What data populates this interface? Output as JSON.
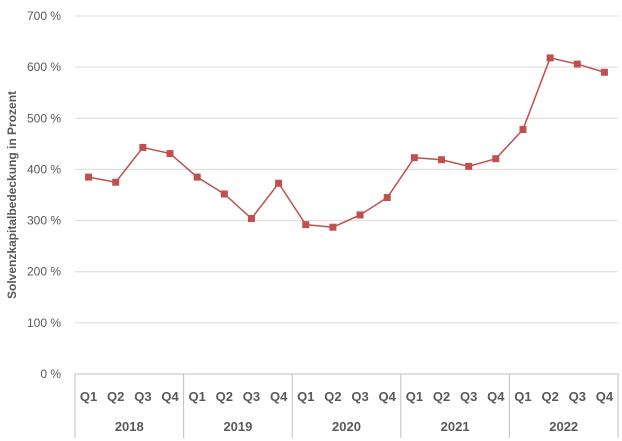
{
  "chart_data": {
    "type": "line",
    "ylabel": "Solvenzkapitalbedeckung in Prozent",
    "ylim": [
      0,
      700
    ],
    "y_ticks": [
      {
        "value": 0,
        "label": "0 %"
      },
      {
        "value": 100,
        "label": "100 %"
      },
      {
        "value": 200,
        "label": "200 %"
      },
      {
        "value": 300,
        "label": "300 %"
      },
      {
        "value": 400,
        "label": "400 %"
      },
      {
        "value": 500,
        "label": "500 %"
      },
      {
        "value": 600,
        "label": "600 %"
      },
      {
        "value": 700,
        "label": "700 %"
      }
    ],
    "grid": true,
    "years": [
      "2018",
      "2019",
      "2020",
      "2021",
      "2022"
    ],
    "quarters": [
      "Q1",
      "Q2",
      "Q3",
      "Q4"
    ],
    "series": [
      {
        "values": [
          385,
          375,
          443,
          431,
          385,
          352,
          304,
          373,
          292,
          287,
          311,
          345,
          423,
          419,
          406,
          421,
          478,
          618,
          606,
          590
        ],
        "color": "#c0504d"
      }
    ]
  }
}
